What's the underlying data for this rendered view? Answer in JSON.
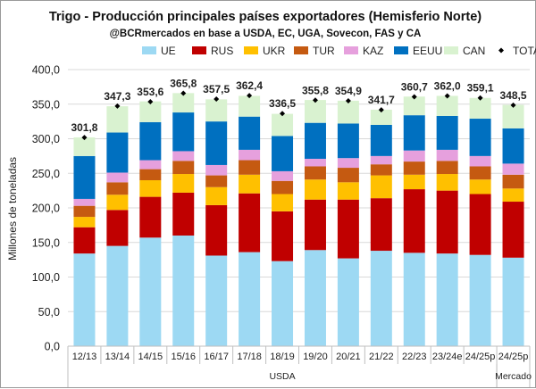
{
  "chart_data": {
    "type": "bar",
    "stacked": true,
    "title": "Trigo - Producción principales países exportadores (Hemisferio Norte)",
    "subtitle": "@BCRmercados en base a USDA, EC, UGA, Sovecon, FAS y CA",
    "ylabel": "Millones de toneladas",
    "xlabel": "",
    "ylim": [
      0,
      400
    ],
    "yticks": [
      "0,0",
      "50,0",
      "100,0",
      "150,0",
      "200,0",
      "250,0",
      "300,0",
      "350,0",
      "400,0"
    ],
    "grid": true,
    "legend_position": "top",
    "categories": [
      "12/13",
      "13/14",
      "14/15",
      "15/16",
      "16/17",
      "17/18",
      "18/19",
      "19/20",
      "20/21",
      "21/22",
      "22/23",
      "23/24e",
      "24/25p",
      "24/25p"
    ],
    "groups": [
      {
        "label": "USDA",
        "from": 0,
        "to": 12
      },
      {
        "label": "Mercado",
        "from": 13,
        "to": 13
      }
    ],
    "series": [
      {
        "name": "UE",
        "color": "#9dd9f3",
        "values": [
          134,
          145,
          157,
          160,
          131,
          136,
          123,
          139,
          127,
          138,
          135,
          134,
          132,
          128
        ]
      },
      {
        "name": "RUS",
        "color": "#c00000",
        "values": [
          38,
          52,
          59,
          62,
          73,
          85,
          72,
          73,
          85,
          76,
          92,
          91,
          88,
          81
        ]
      },
      {
        "name": "UKR",
        "color": "#ffc000",
        "values": [
          15,
          22,
          24,
          27,
          26,
          27,
          25,
          29,
          25,
          33,
          21,
          24,
          21,
          19
        ]
      },
      {
        "name": "TUR",
        "color": "#c55a11",
        "values": [
          16,
          18,
          16,
          19,
          17,
          21,
          19,
          19,
          21,
          16,
          19,
          19,
          19,
          20
        ]
      },
      {
        "name": "KAZ",
        "color": "#e6a0dd",
        "values": [
          10,
          14,
          13,
          14,
          15,
          15,
          14,
          11,
          14,
          12,
          16,
          16,
          15,
          16
        ]
      },
      {
        "name": "EEUU",
        "color": "#0070c0",
        "values": [
          62,
          58,
          55,
          56,
          63,
          48,
          51,
          52,
          50,
          45,
          51,
          49,
          54,
          51
        ]
      },
      {
        "name": "CAN",
        "color": "#d9f2d0",
        "values": [
          27,
          38,
          30,
          28,
          32,
          30,
          32,
          33,
          33,
          22,
          27,
          29,
          30,
          34
        ]
      }
    ],
    "total": {
      "name": "TOTAL",
      "values": [
        301.8,
        347.3,
        353.6,
        365.8,
        357.5,
        362.4,
        336.5,
        355.8,
        354.9,
        341.7,
        360.7,
        362.0,
        359.1,
        348.5
      ]
    },
    "total_labels": [
      "301,8",
      "347,3",
      "353,6",
      "365,8",
      "357,5",
      "362,4",
      "336,5",
      "355,8",
      "354,9",
      "341,7",
      "360,7",
      "362,0",
      "359,1",
      "348,5"
    ]
  }
}
